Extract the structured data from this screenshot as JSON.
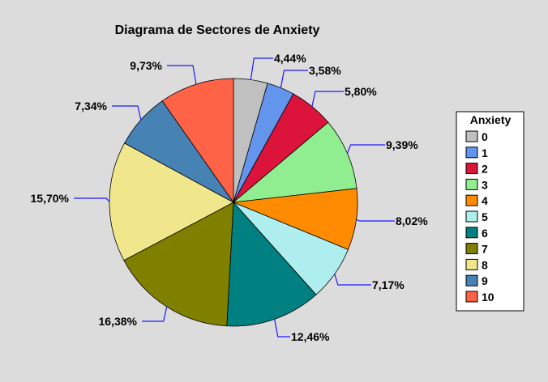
{
  "chart_data": {
    "type": "pie",
    "title": "Diagrama de Sectores de Anxiety",
    "legend_title": "Anxiety",
    "legend_position": "right",
    "slices": [
      {
        "label": "0",
        "value": 4.44,
        "label_text": "4,44%",
        "color": "#c0c0c0"
      },
      {
        "label": "1",
        "value": 3.58,
        "label_text": "3,58%",
        "color": "#6495ed"
      },
      {
        "label": "2",
        "value": 5.8,
        "label_text": "5,80%",
        "color": "#dc143c"
      },
      {
        "label": "3",
        "value": 9.39,
        "label_text": "9,39%",
        "color": "#90ee90"
      },
      {
        "label": "4",
        "value": 8.02,
        "label_text": "8,02%",
        "color": "#ff8c00"
      },
      {
        "label": "5",
        "value": 7.17,
        "label_text": "7,17%",
        "color": "#afeeee"
      },
      {
        "label": "6",
        "value": 12.46,
        "label_text": "12,46%",
        "color": "#008080"
      },
      {
        "label": "7",
        "value": 16.38,
        "label_text": "16,38%",
        "color": "#808000"
      },
      {
        "label": "8",
        "value": 15.7,
        "label_text": "15,70%",
        "color": "#f0e68c"
      },
      {
        "label": "9",
        "value": 7.34,
        "label_text": "7,34%",
        "color": "#4682b4"
      },
      {
        "label": "10",
        "value": 9.73,
        "label_text": "9,73%",
        "color": "#ff6347"
      }
    ]
  }
}
